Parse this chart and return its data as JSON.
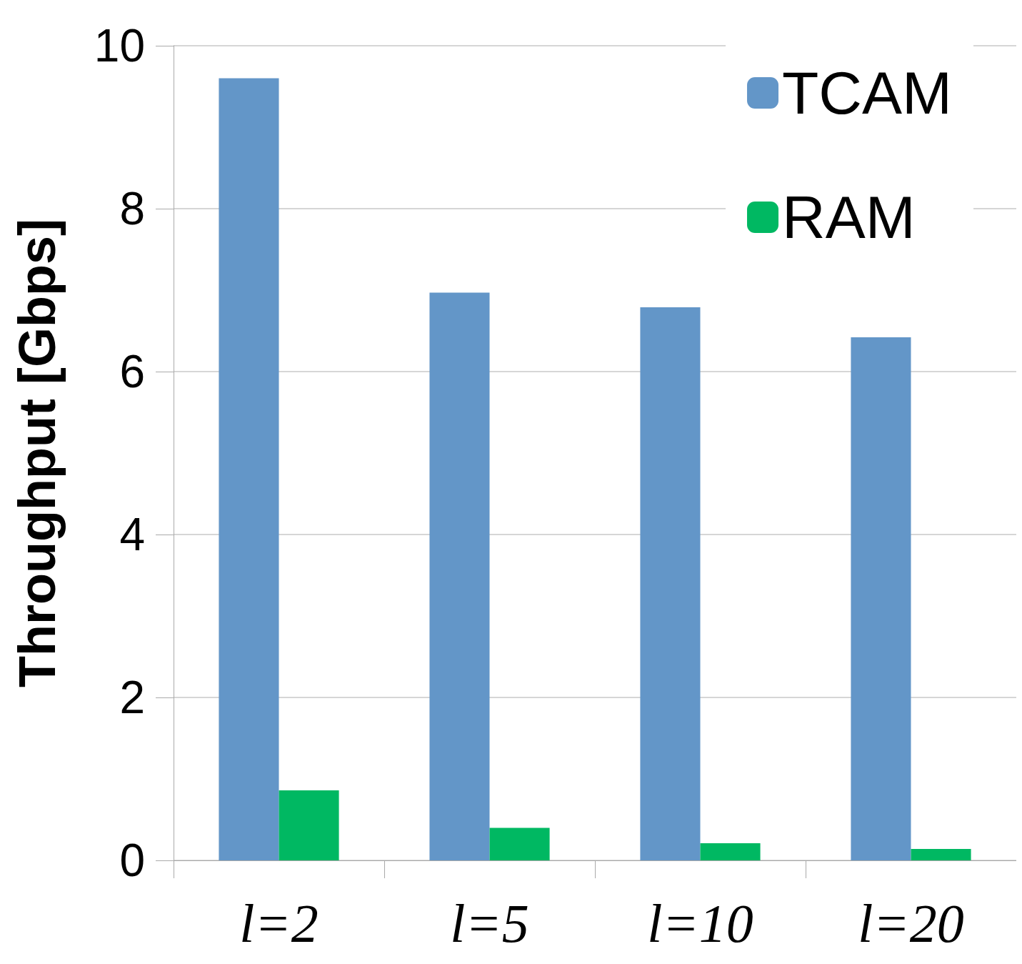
{
  "chart_data": {
    "type": "bar",
    "ylabel": "Throughput [Gbps]",
    "categories": [
      "l=2",
      "l=5",
      "l=10",
      "l=20"
    ],
    "series": [
      {
        "name": "TCAM",
        "color": "#6396c8",
        "values": [
          9.6,
          6.97,
          6.79,
          6.42
        ]
      },
      {
        "name": "RAM",
        "color": "#00b862",
        "values": [
          0.86,
          0.4,
          0.21,
          0.14
        ]
      }
    ],
    "ylim": [
      0,
      10
    ],
    "yticks": [
      0,
      2,
      4,
      6,
      8,
      10
    ],
    "grid": "y",
    "legend": "top right"
  }
}
